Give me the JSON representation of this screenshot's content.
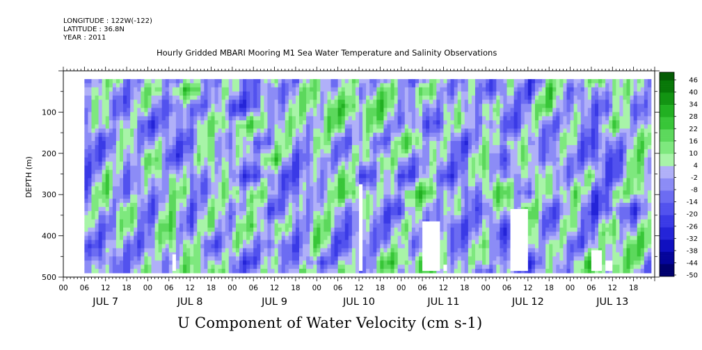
{
  "header": {
    "longitude": "LONGITUDE : 122W(-122)",
    "latitude": "LATITUDE : 36.8N",
    "year": "YEAR : 2011"
  },
  "chart_data": {
    "type": "heatmap",
    "title": "Hourly Gridded MBARI Mooring M1 Sea Water Temperature and Salinity Observations",
    "xlabel": "U Component of Water Velocity (cm s-1)",
    "ylabel": "DEPTH (m)",
    "y_ticks": [
      100,
      200,
      300,
      400,
      500
    ],
    "ylim": [
      500,
      0
    ],
    "y_inverted": true,
    "x_hour_ticks": [
      "00",
      "06",
      "12",
      "18",
      "00",
      "06",
      "12",
      "18",
      "00",
      "06",
      "12",
      "18",
      "00",
      "06",
      "12",
      "18",
      "00",
      "06",
      "12",
      "18",
      "00",
      "06",
      "12",
      "18",
      "00",
      "06",
      "12",
      "18"
    ],
    "x_day_labels": [
      "JUL 7",
      "JUL 8",
      "JUL 9",
      "JUL 10",
      "JUL 11",
      "JUL 12",
      "JUL 13"
    ],
    "xlim": [
      "JUL 7 00:00",
      "JUL 13 23:00"
    ],
    "data_start": "JUL 7 06:00",
    "depth_range": [
      20,
      485
    ],
    "colorbar": {
      "labels": [
        "46",
        "40",
        "34",
        "28",
        "22",
        "16",
        "10",
        "4",
        "-2",
        "-8",
        "-14",
        "-20",
        "-26",
        "-32",
        "-38",
        "-44",
        "-50"
      ],
      "range": [
        -50,
        50
      ]
    },
    "gaps": [
      {
        "time_start": "JUL 8 07:00",
        "time_end": "JUL 8 08:00",
        "depth_top": 445,
        "depth_bottom": 485
      },
      {
        "time_start": "JUL 10 12:00",
        "time_end": "JUL 10 13:00",
        "depth_top": 275,
        "depth_bottom": 485
      },
      {
        "time_start": "JUL 11 06:00",
        "time_end": "JUL 11 11:00",
        "depth_top": 365,
        "depth_bottom": 485
      },
      {
        "time_start": "JUL 11 12:00",
        "time_end": "JUL 11 13:00",
        "depth_top": 470,
        "depth_bottom": 485
      },
      {
        "time_start": "JUL 12 07:00",
        "time_end": "JUL 12 12:00",
        "depth_top": 335,
        "depth_bottom": 485
      },
      {
        "time_start": "JUL 13 06:00",
        "time_end": "JUL 13 09:00",
        "depth_top": 435,
        "depth_bottom": 485
      },
      {
        "time_start": "JUL 13 10:00",
        "time_end": "JUL 13 12:00",
        "depth_top": 460,
        "depth_bottom": 485
      }
    ],
    "colors": {
      "positive": "#2f9e2f",
      "light_positive": "#9ef09e",
      "light_negative": "#b4b4f4",
      "negative": "#3a3ad6"
    }
  }
}
